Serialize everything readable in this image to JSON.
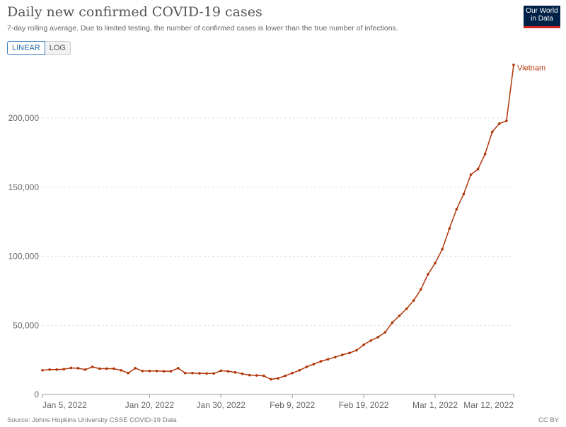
{
  "header": {
    "title": "Daily new confirmed COVID-19 cases",
    "subtitle": "7-day rolling average. Due to limited testing, the number of confirmed cases is lower than the true number of infections.",
    "scale_toggle": {
      "linear": "LINEAR",
      "log": "LOG",
      "selected": "LINEAR"
    },
    "logo": "Our World in Data"
  },
  "footer": {
    "source": "Source: Johns Hopkins University CSSE COVID-19 Data",
    "license": "CC BY"
  },
  "chart_data": {
    "type": "line",
    "title": "Daily new confirmed COVID-19 cases",
    "x_start": "2022-01-05",
    "x_end": "2022-03-12",
    "x_ticks": [
      {
        "date": "2022-01-05",
        "label": "Jan 5, 2022"
      },
      {
        "date": "2022-01-20",
        "label": "Jan 20, 2022"
      },
      {
        "date": "2022-01-30",
        "label": "Jan 30, 2022"
      },
      {
        "date": "2022-02-09",
        "label": "Feb 9, 2022"
      },
      {
        "date": "2022-02-19",
        "label": "Feb 19, 2022"
      },
      {
        "date": "2022-03-01",
        "label": "Mar 1, 2022"
      },
      {
        "date": "2022-03-12",
        "label": "Mar 12, 2022"
      }
    ],
    "y_ticks": [
      {
        "value": 0,
        "label": "0"
      },
      {
        "value": 50000,
        "label": "50,000"
      },
      {
        "value": 100000,
        "label": "100,000"
      },
      {
        "value": 150000,
        "label": "150,000"
      },
      {
        "value": 200000,
        "label": "200,000"
      }
    ],
    "ylim": [
      0,
      200000
    ],
    "grid": "horizontal dashed",
    "color": "#b13507",
    "series": [
      {
        "name": "Vietnam",
        "values": [
          17500,
          18000,
          18000,
          18300,
          19200,
          19000,
          18000,
          20000,
          18700,
          18700,
          18700,
          17500,
          15500,
          19000,
          17000,
          17000,
          17000,
          16800,
          16800,
          19000,
          15500,
          15500,
          15300,
          15200,
          15200,
          17200,
          16800,
          16000,
          15000,
          14000,
          13800,
          13500,
          11000,
          11700,
          13500,
          15500,
          17500,
          20000,
          22000,
          24000,
          25500,
          27000,
          28700,
          30000,
          32000,
          36000,
          39000,
          41500,
          45000,
          52000,
          57000,
          62000,
          68000,
          76000,
          87000,
          95000,
          105000,
          120000,
          134000,
          145000,
          159000,
          163000,
          174000,
          190000,
          196000,
          198000,
          238500
        ]
      }
    ]
  }
}
